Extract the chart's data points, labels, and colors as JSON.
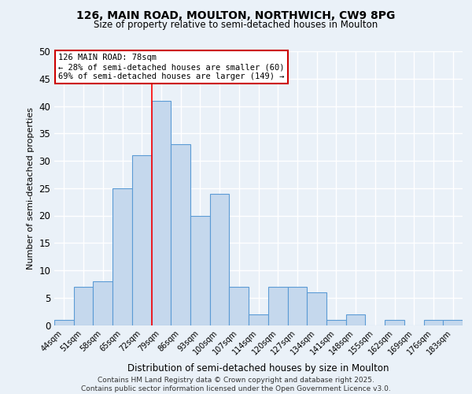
{
  "title_line1": "126, MAIN ROAD, MOULTON, NORTHWICH, CW9 8PG",
  "title_line2": "Size of property relative to semi-detached houses in Moulton",
  "xlabel": "Distribution of semi-detached houses by size in Moulton",
  "ylabel": "Number of semi-detached properties",
  "categories": [
    "44sqm",
    "51sqm",
    "58sqm",
    "65sqm",
    "72sqm",
    "79sqm",
    "86sqm",
    "93sqm",
    "100sqm",
    "107sqm",
    "114sqm",
    "120sqm",
    "127sqm",
    "134sqm",
    "141sqm",
    "148sqm",
    "155sqm",
    "162sqm",
    "169sqm",
    "176sqm",
    "183sqm"
  ],
  "values": [
    1,
    7,
    8,
    25,
    31,
    41,
    33,
    20,
    24,
    7,
    2,
    7,
    7,
    6,
    1,
    2,
    0,
    1,
    0,
    1,
    1
  ],
  "bar_color": "#c5d8ed",
  "bar_edge_color": "#5b9bd5",
  "red_line_x": 4.5,
  "annotation_title": "126 MAIN ROAD: 78sqm",
  "annotation_line2": "← 28% of semi-detached houses are smaller (60)",
  "annotation_line3": "69% of semi-detached houses are larger (149) →",
  "annotation_box_color": "#ffffff",
  "annotation_box_edge": "#cc0000",
  "ylim": [
    0,
    50
  ],
  "yticks": [
    0,
    5,
    10,
    15,
    20,
    25,
    30,
    35,
    40,
    45,
    50
  ],
  "footer_line1": "Contains HM Land Registry data © Crown copyright and database right 2025.",
  "footer_line2": "Contains public sector information licensed under the Open Government Licence v3.0.",
  "background_color": "#eaf1f8",
  "grid_color": "#ffffff"
}
